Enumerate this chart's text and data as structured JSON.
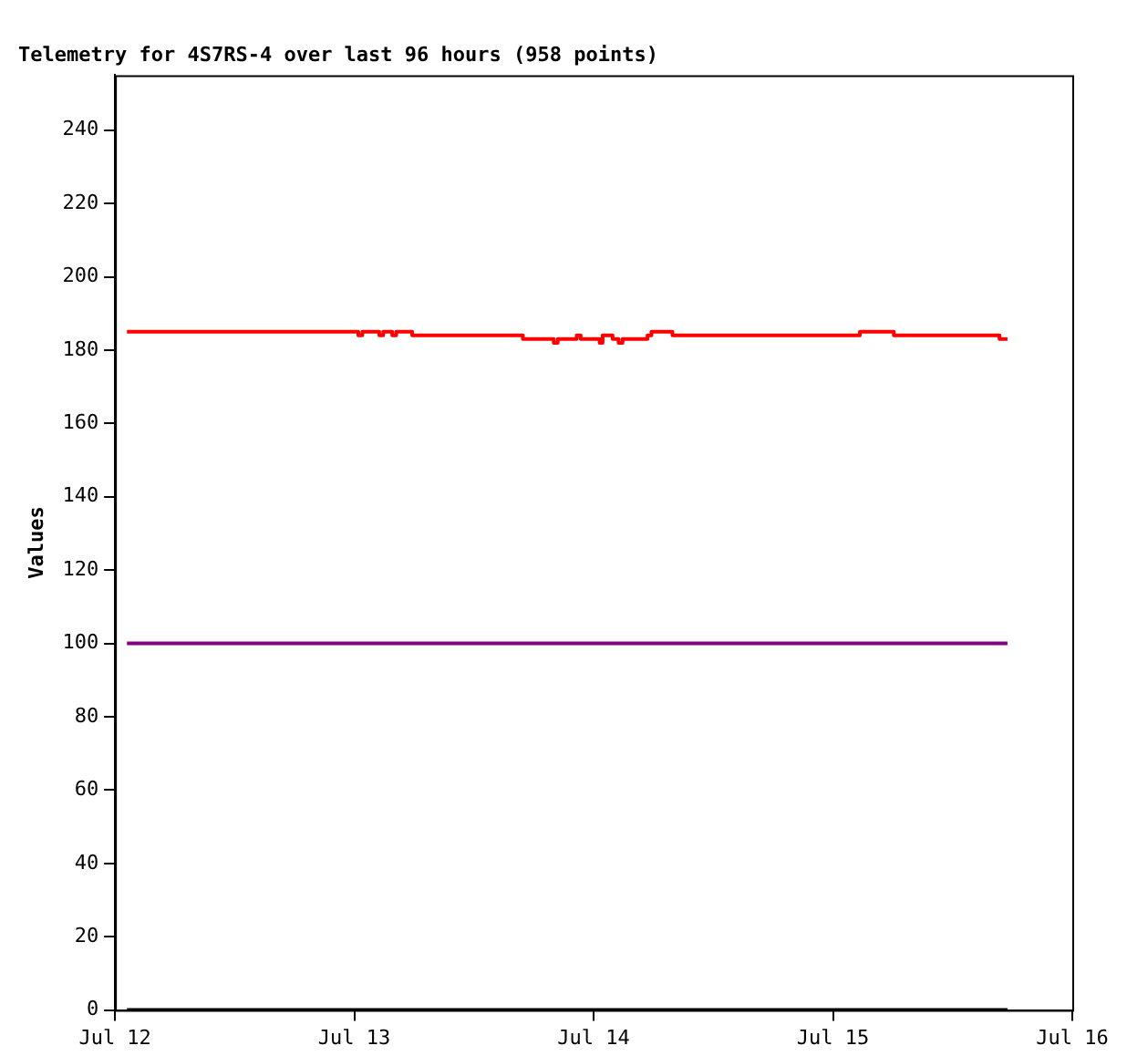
{
  "chart_data": {
    "type": "step",
    "title": "Telemetry for 4S7RS-4 over last 96 hours (958 points)",
    "ylabel": "Values",
    "xlim": [
      "--07-12",
      "--07-16"
    ],
    "xticks": [
      {
        "value": "--07-12",
        "label": "Jul 12"
      },
      {
        "value": "--07-13",
        "label": "Jul 13"
      },
      {
        "value": "--07-14",
        "label": "Jul 14"
      },
      {
        "value": "--07-15",
        "label": "Jul 15"
      },
      {
        "value": "--07-16",
        "label": "Jul 16"
      }
    ],
    "ylim": [
      0,
      255
    ],
    "yticks": [
      0,
      20,
      40,
      60,
      80,
      100,
      120,
      140,
      160,
      180,
      200,
      220,
      240
    ],
    "grid": false,
    "legend": false,
    "series": [
      {
        "color": "#ff0000",
        "x": [
          "--07-12T01:12",
          "--07-13T00:24",
          "--07-13T00:48",
          "--07-13T02:30",
          "--07-13T02:54",
          "--07-13T03:48",
          "--07-13T04:12",
          "--07-13T05:48",
          "--07-13T16:54",
          "--07-13T20:00",
          "--07-13T20:24",
          "--07-13T22:18",
          "--07-13T22:42",
          "--07-14T00:36",
          "--07-14T00:54",
          "--07-14T01:54",
          "--07-14T02:30",
          "--07-14T02:54",
          "--07-14T05:24",
          "--07-14T05:48",
          "--07-14T07:54",
          "--07-15T02:42",
          "--07-15T06:06",
          "--07-15T16:42",
          "--07-15T17:30"
        ],
        "values": [
          185,
          184,
          185,
          184,
          185,
          184,
          185,
          184,
          183,
          182,
          183,
          184,
          183,
          182,
          184,
          183,
          182,
          183,
          184,
          185,
          184,
          185,
          184,
          183,
          183
        ]
      },
      {
        "color": "#800080",
        "x": [
          "--07-12T01:12",
          "--07-15T17:30"
        ],
        "values": [
          100,
          100
        ]
      },
      {
        "color": "#000000",
        "x": [
          "--07-12T01:12",
          "--07-15T17:30"
        ],
        "values": [
          0,
          0
        ]
      }
    ]
  }
}
